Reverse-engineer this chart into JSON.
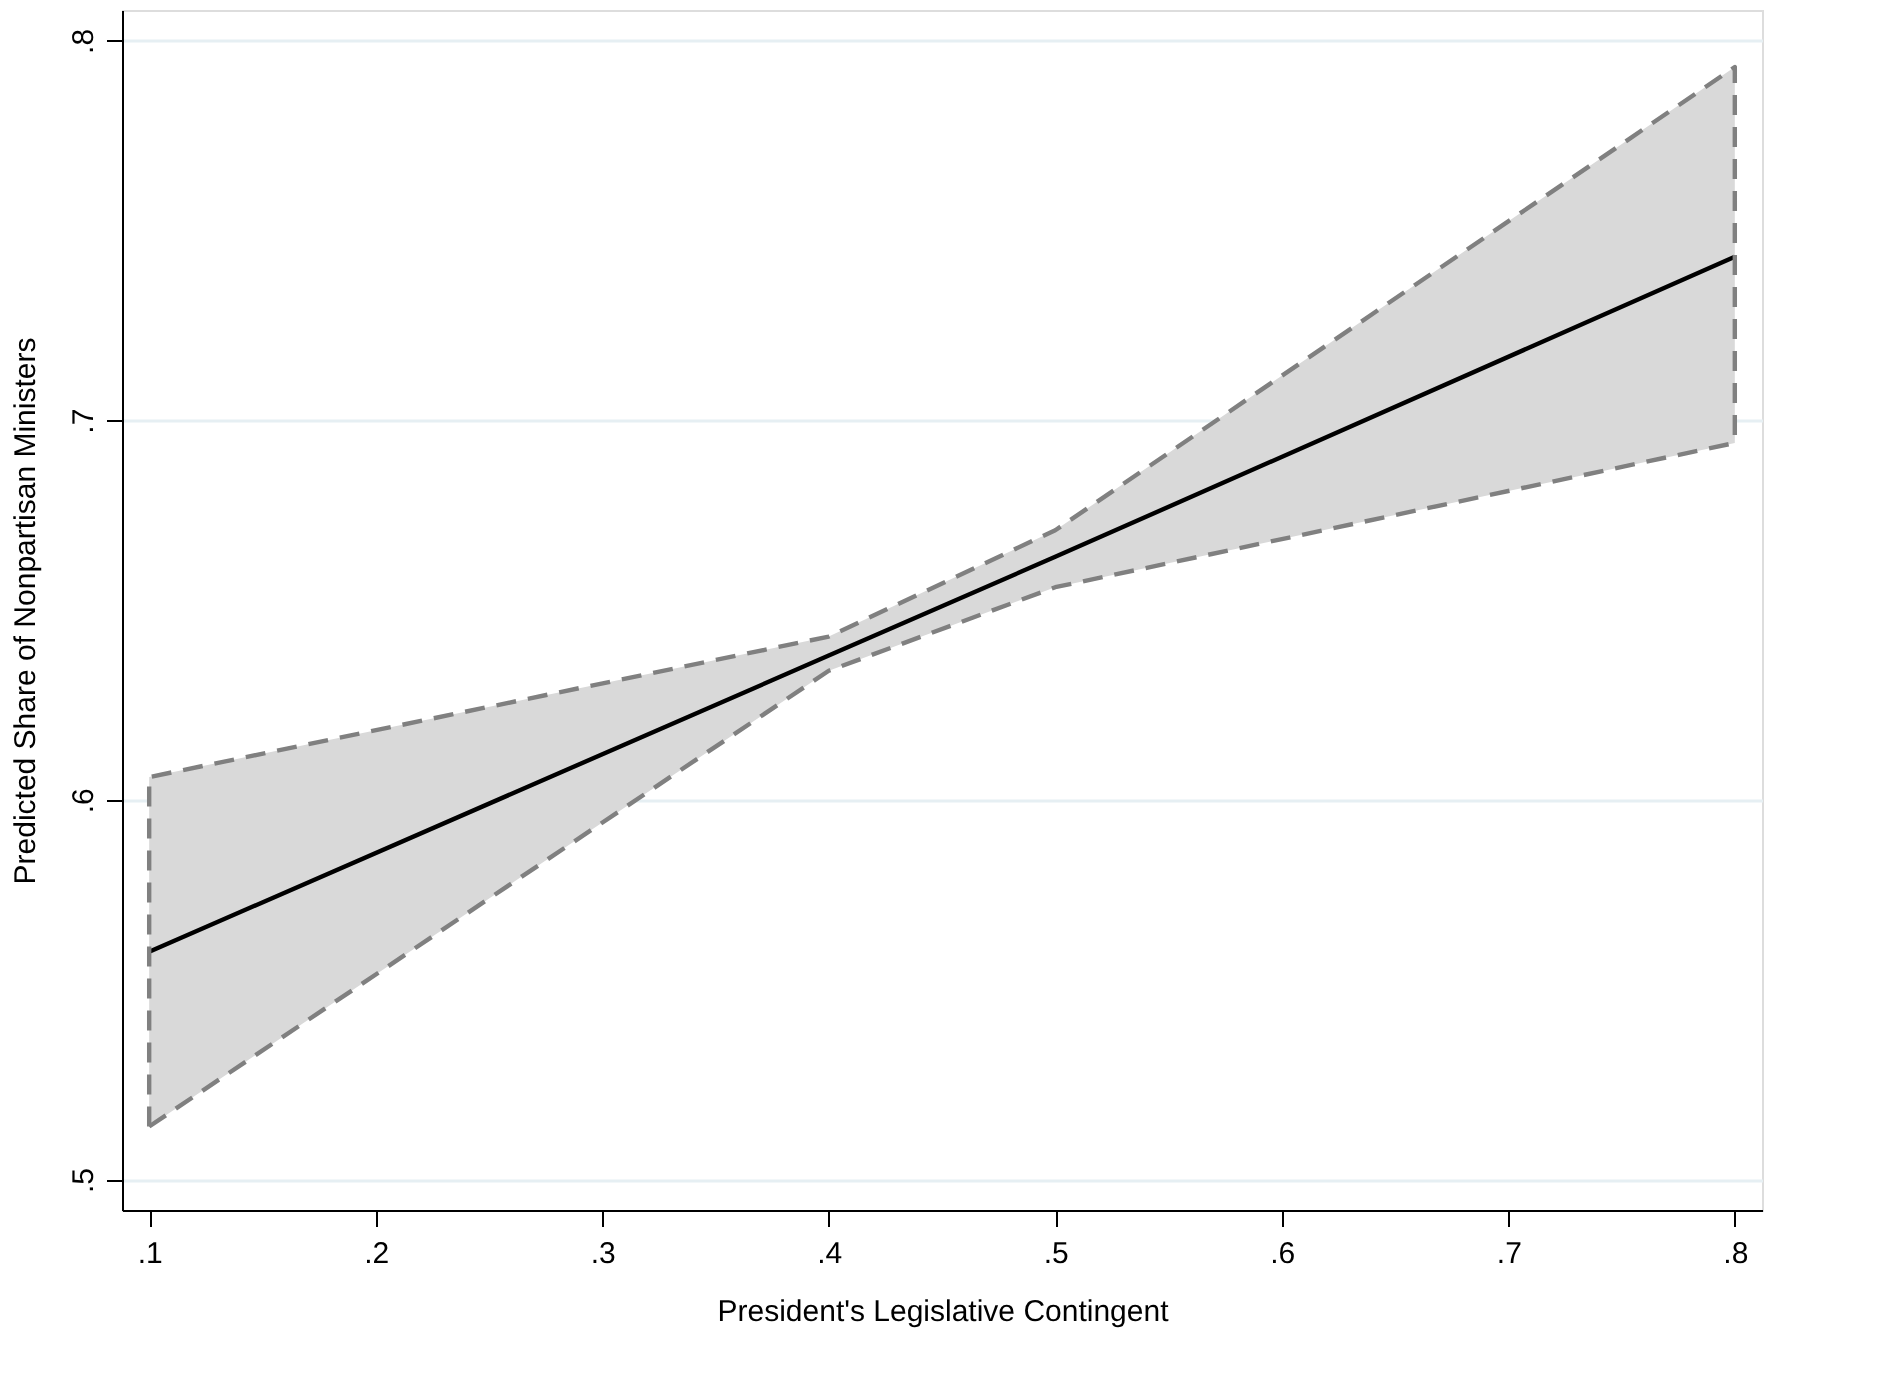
{
  "chart_data": {
    "type": "line",
    "xlabel": "President's Legislative Contingent",
    "ylabel": "Predicted Share of Nonpartisan Ministers",
    "x": [
      0.1,
      0.4,
      0.5,
      0.8
    ],
    "series": [
      {
        "color": "#000000",
        "values": [
          0.56,
          0.638,
          0.664,
          0.743
        ],
        "lower": [
          0.514,
          0.634,
          0.656,
          0.694
        ],
        "upper": [
          0.606,
          0.643,
          0.671,
          0.793
        ]
      },
      {
        "color": "#808080",
        "line_style": "dashed",
        "x": [
          0.1,
          0.1,
          0.4,
          0.5,
          0.8,
          0.8
        ],
        "values": [
          0.514,
          0.606,
          0.643,
          0.671,
          0.793,
          0.694
        ]
      },
      {
        "color": "#808080",
        "line_style": "dashed",
        "values": [
          0.514,
          0.634,
          0.656,
          0.694
        ]
      }
    ],
    "xlim": [
      0.088,
      0.812
    ],
    "ylim": [
      0.492,
      0.808
    ],
    "xticks": [
      {
        "value": 0.1,
        "label": ".1"
      },
      {
        "value": 0.2,
        "label": ".2"
      },
      {
        "value": 0.3,
        "label": ".3"
      },
      {
        "value": 0.4,
        "label": ".4"
      },
      {
        "value": 0.5,
        "label": ".5"
      },
      {
        "value": 0.6,
        "label": ".6"
      },
      {
        "value": 0.7,
        "label": ".7"
      },
      {
        "value": 0.8,
        "label": ".8"
      }
    ],
    "yticks": [
      {
        "value": 0.5,
        "label": ".5"
      },
      {
        "value": 0.6,
        "label": ".6"
      },
      {
        "value": 0.7,
        "label": ".7"
      },
      {
        "value": 0.8,
        "label": ".8"
      }
    ],
    "grid": "y",
    "marker": "none",
    "line_style": "solid"
  }
}
